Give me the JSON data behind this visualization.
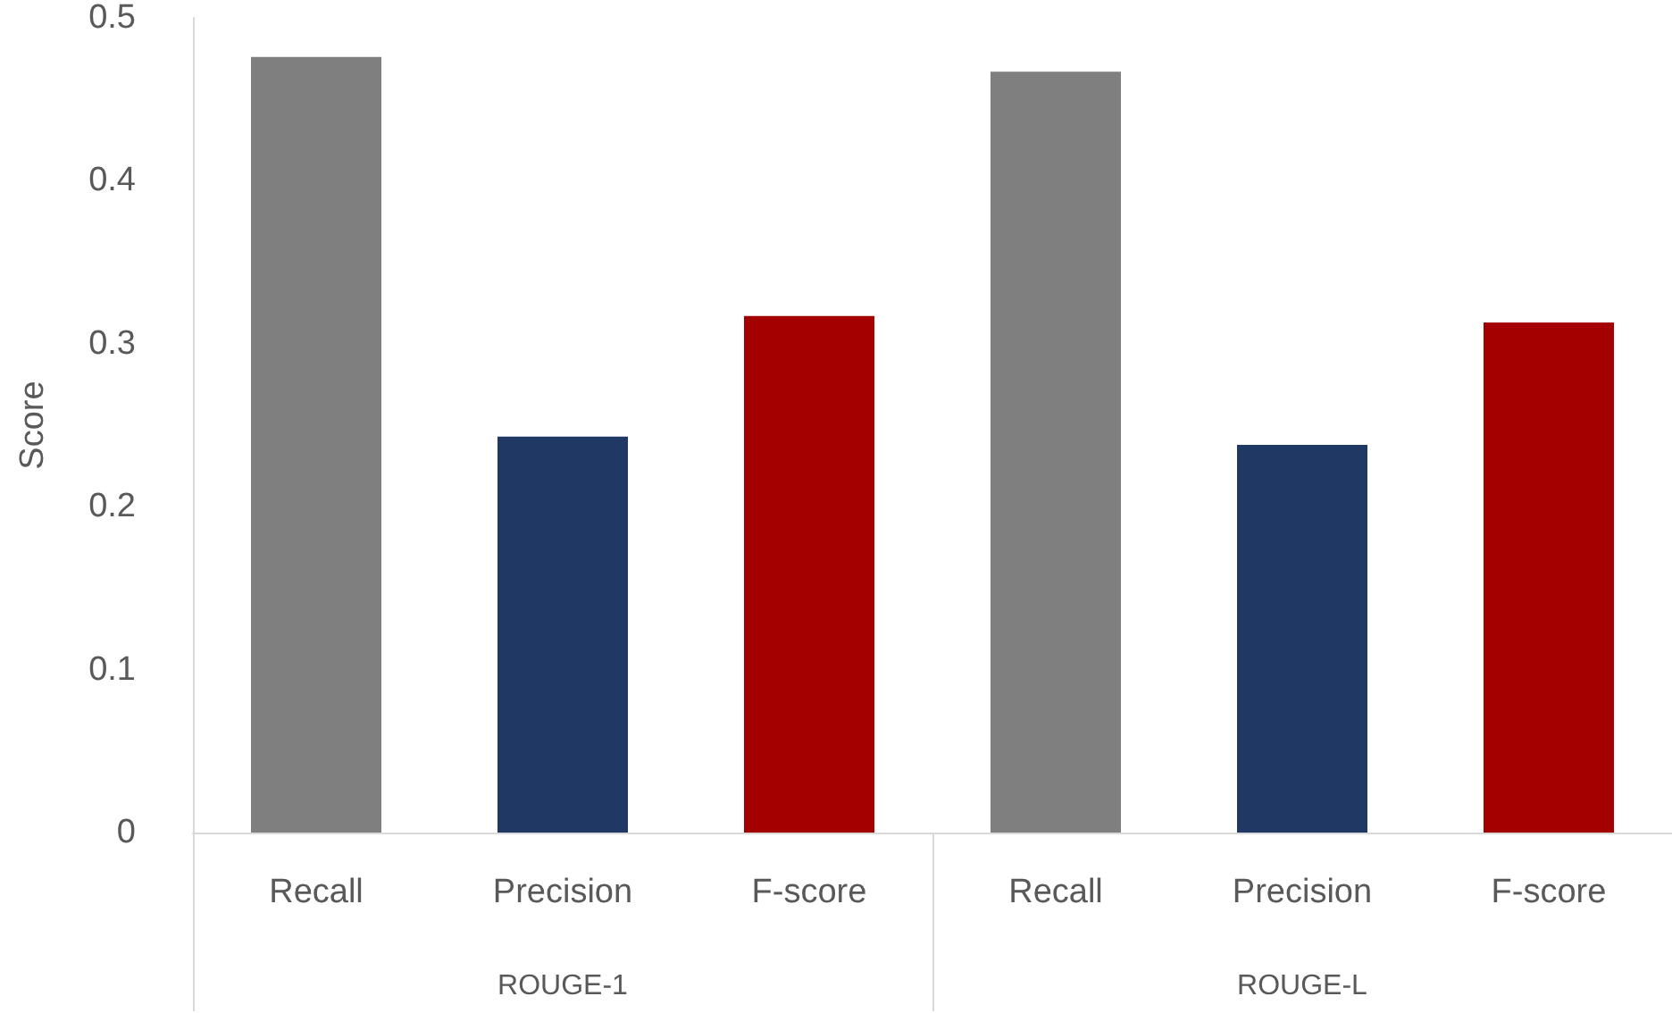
{
  "chart_data": {
    "type": "bar",
    "ylabel": "Score",
    "categories": [
      "Recall",
      "Precision",
      "F-score",
      "Recall",
      "Precision",
      "F-score"
    ],
    "values": [
      0.476,
      0.243,
      0.317,
      0.467,
      0.238,
      0.313
    ],
    "colors": [
      "#7f7f7f",
      "#203864",
      "#a50000",
      "#7f7f7f",
      "#203864",
      "#a50000"
    ],
    "annotations": [
      "ROUGE-1",
      "ROUGE-L"
    ],
    "ylim": [
      0,
      0.5
    ],
    "yticks": [
      0,
      0.1,
      0.2,
      0.3,
      0.4,
      0.5
    ],
    "grid": false
  }
}
